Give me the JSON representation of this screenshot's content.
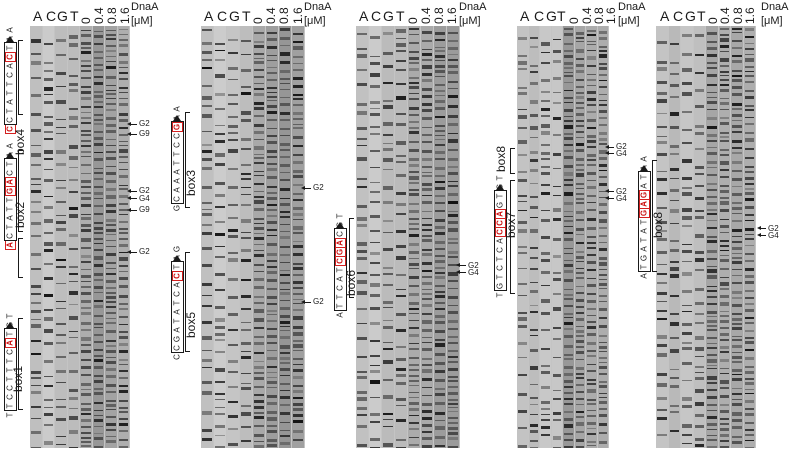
{
  "figure": {
    "panels": [
      {
        "id": "p1",
        "lanes": [
          "A",
          "C",
          "G",
          "T"
        ],
        "concentrations": [
          "0",
          "0.4",
          "0.8",
          "1.6"
        ],
        "reagent": "DnaA",
        "unit": "[μM]",
        "boxes": [
          {
            "label": "box4",
            "sequence": "AATCACTTATCC",
            "highlighted": [
              3,
              11
            ]
          },
          {
            "label": "box2",
            "sequence": "AATCAGTTATCA",
            "highlighted": [
              4,
              5,
              11
            ]
          },
          {
            "label": "box1",
            "sequence": "TGTACTTTCCTT",
            "highlighted": [
              3
            ]
          }
        ],
        "annotations": [
          {
            "text": "G2"
          },
          {
            "text": "G9"
          },
          {
            "text": "G2"
          },
          {
            "text": "G4"
          },
          {
            "text": "G9"
          },
          {
            "text": "G2"
          }
        ]
      },
      {
        "id": "p2",
        "lanes": [
          "A",
          "C",
          "G",
          "T"
        ],
        "concentrations": [
          "0",
          "0.4",
          "0.8",
          "1.6"
        ],
        "reagent": "DnaA",
        "unit": "[μM]",
        "boxes": [
          {
            "label": "box3",
            "sequence": "AAGCCTTAAACG",
            "highlighted": [
              2
            ]
          },
          {
            "label": "box5",
            "sequence": "GATCACTATAGCC",
            "highlighted": [
              3
            ]
          }
        ],
        "annotations": [
          {
            "text": "G2"
          },
          {
            "text": "G2"
          }
        ]
      },
      {
        "id": "p3",
        "lanes": [
          "A",
          "C",
          "G",
          "T"
        ],
        "concentrations": [
          "0",
          "0.4",
          "0.8",
          "1.6"
        ],
        "reagent": "DnaA",
        "unit": "[μM]",
        "boxes": [
          {
            "label": "box6",
            "sequence": "TCCAGCTACTTA",
            "highlighted": [
              3,
              4,
              5
            ]
          }
        ],
        "annotations": [
          {
            "text": "G2"
          },
          {
            "text": "G4"
          }
        ]
      },
      {
        "id": "p4",
        "lanes": [
          "A",
          "C",
          "G",
          "T"
        ],
        "concentrations": [
          "0",
          "0.4",
          "0.8",
          "1.6"
        ],
        "reagent": "DnaA",
        "unit": "[μM]",
        "boxes": [
          {
            "label": "box8",
            "sequence": "",
            "highlighted": []
          },
          {
            "label": "box7",
            "sequence": "TCTGACCACTCTGT",
            "highlighted": [
              4,
              5,
              6
            ]
          }
        ],
        "annotations": [
          {
            "text": "G2"
          },
          {
            "text": "G4"
          },
          {
            "text": "G2"
          },
          {
            "text": "G4"
          }
        ]
      },
      {
        "id": "p5",
        "lanes": [
          "A",
          "C",
          "G",
          "T"
        ],
        "concentrations": [
          "0",
          "0.4",
          "0.8",
          "1.6"
        ],
        "reagent": "DnaA",
        "unit": "[μM]",
        "boxes": [
          {
            "label": "box8",
            "sequence": "AATAGAGTATAGTA",
            "highlighted": [
              4,
              5,
              6
            ]
          }
        ],
        "annotations": [
          {
            "text": "G2"
          },
          {
            "text": "G4"
          }
        ]
      }
    ]
  }
}
